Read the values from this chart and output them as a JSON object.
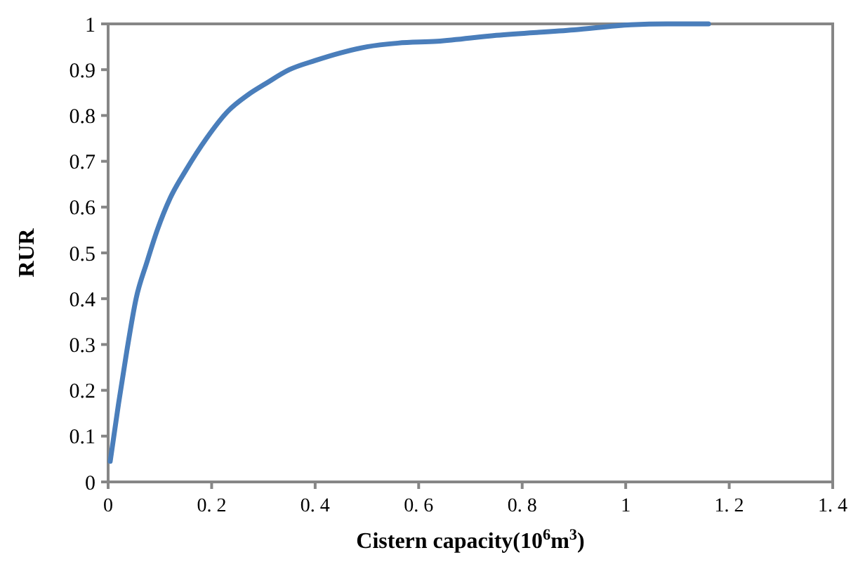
{
  "chart_data": {
    "type": "line",
    "xlabel": "Cistern capacity(10$^{6}$m$^{3}$)",
    "ylabel": "RUR",
    "xlim": [
      0,
      1.4
    ],
    "xticks": [
      {
        "value": 0,
        "label": "0"
      },
      {
        "value": 0.2,
        "label": "0. 2"
      },
      {
        "value": 0.4,
        "label": "0. 4"
      },
      {
        "value": 0.6,
        "label": "0. 6"
      },
      {
        "value": 0.8,
        "label": "0. 8"
      },
      {
        "value": 1,
        "label": "1"
      },
      {
        "value": 1.2,
        "label": "1. 2"
      },
      {
        "value": 1.4,
        "label": "1. 4"
      }
    ],
    "ylim": [
      0,
      1
    ],
    "yticks": [
      0,
      0.1,
      0.2,
      0.3,
      0.4,
      0.5,
      0.6,
      0.7,
      0.8,
      0.9,
      1
    ],
    "grid": false,
    "series": [
      {
        "color": "#4a7ebb",
        "x": [
          0.004,
          0.02,
          0.036,
          0.054,
          0.075,
          0.095,
          0.12,
          0.15,
          0.19,
          0.232,
          0.27,
          0.305,
          0.35,
          0.4,
          0.45,
          0.5,
          0.56,
          0.636,
          0.75,
          0.9,
          1.01,
          1.08,
          1.16
        ],
        "values": [
          0.045,
          0.17,
          0.285,
          0.4,
          0.48,
          0.55,
          0.62,
          0.68,
          0.75,
          0.81,
          0.845,
          0.87,
          0.9,
          0.92,
          0.937,
          0.95,
          0.958,
          0.962,
          0.975,
          0.987,
          0.998,
          1,
          1
        ]
      }
    ]
  }
}
